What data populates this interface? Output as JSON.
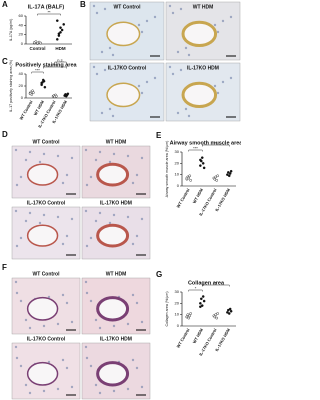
{
  "panel_labels": [
    "A",
    "B",
    "C",
    "D",
    "E",
    "F",
    "G"
  ],
  "image_labels": {
    "B": [
      "WT Control",
      "WT HDM",
      "IL-17KO Control",
      "IL-17KO HDM"
    ],
    "D": [
      "WT Control",
      "WT HDM",
      "IL-17KO Control",
      "IL-17KO HDM"
    ],
    "F": [
      "WT Control",
      "WT HDM",
      "IL-17KO Control",
      "IL-17KO HDM"
    ]
  },
  "chart_data": [
    {
      "type": "dotplot",
      "title": "IL-17A (BALF)",
      "y_label": "IL-17A (pg/ml)",
      "categories": [
        "Control",
        "HDM"
      ],
      "values": [
        [
          2,
          3,
          1,
          4,
          2,
          3,
          5,
          2
        ],
        [
          10,
          18,
          25,
          30,
          42,
          50,
          22,
          35
        ]
      ],
      "point_fill": [
        "#ffffff",
        "#111111"
      ],
      "ylim": [
        0,
        60
      ],
      "yticks": [
        0,
        20,
        40,
        60
      ],
      "annotations": [
        {
          "text": "**",
          "pair": [
            0,
            1
          ]
        }
      ]
    },
    {
      "type": "dotplot",
      "title": "Positively staining area",
      "y_label": "IL-17 positively staining area (%)",
      "categories": [
        "WT Control",
        "WT HDM",
        "IL-17KO Control",
        "IL-17KO HDM"
      ],
      "values": [
        [
          8,
          10,
          6,
          12,
          9,
          7
        ],
        [
          22,
          26,
          30,
          28,
          18,
          25
        ],
        [
          3,
          4,
          2,
          5,
          3
        ],
        [
          4,
          6,
          3,
          5,
          7
        ]
      ],
      "point_fill": [
        "#ffffff",
        "#111111",
        "#ffffff",
        "#111111"
      ],
      "ylim": [
        0,
        40
      ],
      "yticks": [
        0,
        20,
        40
      ],
      "annotations": [
        {
          "text": "***",
          "pair": [
            0,
            1
          ]
        },
        {
          "text": "***",
          "pair": [
            1,
            3
          ]
        },
        {
          "text": "n.s.",
          "pair": [
            2,
            3
          ]
        }
      ]
    },
    {
      "type": "dotplot",
      "title": "Airway smooth muscle area",
      "y_label": "Airway smooth muscle area (%/μm)",
      "categories": [
        "WT Control",
        "WT HDM",
        "IL-17KO Control",
        "IL-17KO HDM"
      ],
      "values": [
        [
          6,
          8,
          7,
          9,
          5,
          7
        ],
        [
          18,
          22,
          25,
          20,
          16,
          23
        ],
        [
          7,
          6,
          8,
          5,
          9
        ],
        [
          10,
          12,
          9,
          11,
          13
        ]
      ],
      "point_fill": [
        "#ffffff",
        "#111111",
        "#ffffff",
        "#111111"
      ],
      "ylim": [
        0,
        30
      ],
      "yticks": [
        0,
        10,
        20,
        30
      ],
      "annotations": [
        {
          "text": "***",
          "pair": [
            0,
            1
          ]
        },
        {
          "text": "**",
          "pair": [
            1,
            3
          ]
        }
      ]
    },
    {
      "type": "dotplot",
      "title": "Collagen area",
      "y_label": "Collagen area (%/μm)",
      "categories": [
        "WT Control",
        "WT HDM",
        "IL-17KO Control",
        "IL-17KO HDM"
      ],
      "values": [
        [
          8,
          10,
          7,
          9,
          11,
          8
        ],
        [
          20,
          24,
          18,
          26,
          22,
          17
        ],
        [
          9,
          8,
          10,
          7,
          11
        ],
        [
          12,
          14,
          11,
          15,
          13
        ]
      ],
      "point_fill": [
        "#ffffff",
        "#111111",
        "#ffffff",
        "#111111"
      ],
      "ylim": [
        0,
        30
      ],
      "yticks": [
        0,
        10,
        20,
        30
      ],
      "annotations": [
        {
          "text": "*",
          "pair": [
            0,
            1
          ]
        },
        {
          "text": "*",
          "pair": [
            1,
            3
          ]
        }
      ]
    }
  ]
}
